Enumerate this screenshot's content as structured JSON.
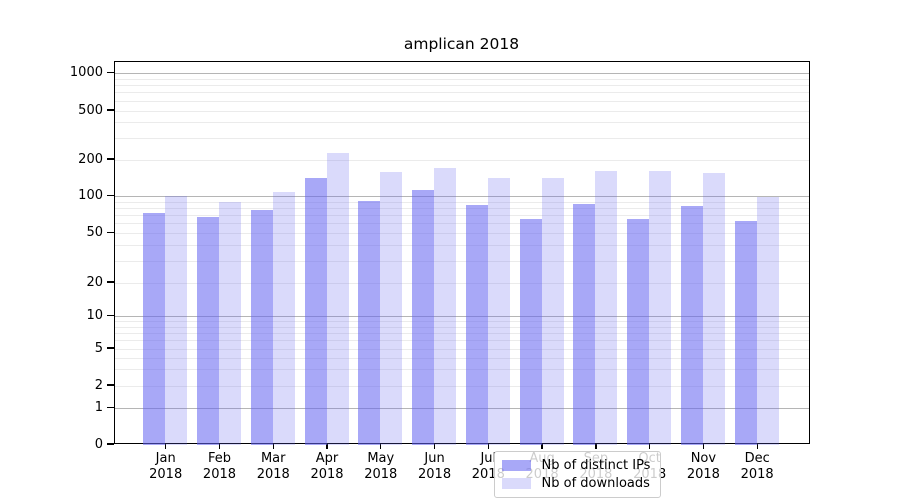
{
  "title": "amplican 2018",
  "chart_data": {
    "type": "bar",
    "title": "amplican 2018",
    "categories": [
      "Jan",
      "Feb",
      "Mar",
      "Apr",
      "May",
      "Jun",
      "Jul",
      "Aug",
      "Sep",
      "Oct",
      "Nov",
      "Dec"
    ],
    "year_label": "2018",
    "series": [
      {
        "name": "Nb of distinct IPs",
        "color": "#6464f0",
        "alpha": 0.56,
        "rendered_color": "#a9a9f7",
        "values": [
          74,
          68,
          78,
          143,
          92,
          113,
          86,
          66,
          87,
          66,
          84,
          64
        ]
      },
      {
        "name": "Nb of downloads",
        "color": "#6464f0",
        "alpha": 0.24,
        "rendered_color": "#dadaf8",
        "values": [
          101,
          90,
          109,
          228,
          160,
          173,
          142,
          143,
          163,
          161,
          157,
          100
        ]
      }
    ],
    "yticks": [
      1000,
      500,
      200,
      100,
      50,
      20,
      10,
      5,
      2,
      1,
      0
    ],
    "yaxis_scale": "log-like with 0 baseline",
    "ylim": [
      0,
      1500
    ],
    "grid": "horizontal, major at powers of 10, faint log minors",
    "legend_position": "lower center",
    "grid_major_color": "#b5b5b5",
    "grid_minor_color": "#ebebeb",
    "axis_color": "#000000",
    "background_color": "#ffffff"
  }
}
